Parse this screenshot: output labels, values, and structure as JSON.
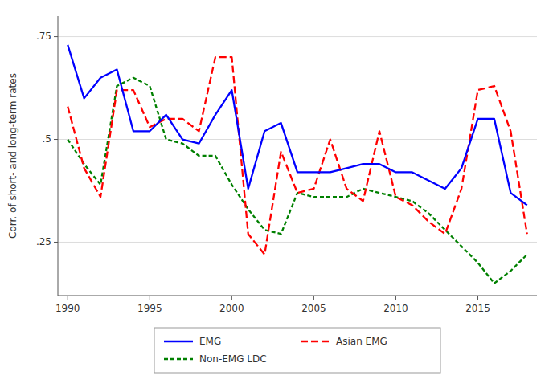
{
  "chart_data": {
    "type": "line",
    "y_label": "Corr. of short- and long-term rates",
    "x": [
      1990,
      1991,
      1992,
      1993,
      1994,
      1995,
      1996,
      1997,
      1998,
      1999,
      2000,
      2001,
      2002,
      2003,
      2004,
      2005,
      2006,
      2007,
      2008,
      2009,
      2010,
      2011,
      2012,
      2013,
      2014,
      2015,
      2016,
      2017,
      2018
    ],
    "series": [
      {
        "name": "EMG",
        "color": "#0000ff",
        "line_style": "solid",
        "values": [
          0.73,
          0.6,
          0.65,
          0.67,
          0.52,
          0.52,
          0.56,
          0.5,
          0.49,
          0.56,
          0.62,
          0.38,
          0.52,
          0.54,
          0.42,
          0.42,
          0.42,
          0.43,
          0.44,
          0.44,
          0.42,
          0.42,
          0.4,
          0.38,
          0.43,
          0.55,
          0.55,
          0.37,
          0.34
        ]
      },
      {
        "name": "Asian EMG",
        "color": "#ff0000",
        "line_style": "dashed",
        "values": [
          0.58,
          0.43,
          0.36,
          0.62,
          0.62,
          0.53,
          0.55,
          0.55,
          0.52,
          0.7,
          0.7,
          0.27,
          0.22,
          0.47,
          0.37,
          0.38,
          0.5,
          0.38,
          0.35,
          0.52,
          0.36,
          0.34,
          0.3,
          0.27,
          0.38,
          0.62,
          0.63,
          0.52,
          0.27
        ]
      },
      {
        "name": "Non-EMG LDC",
        "color": "#008000",
        "line_style": "dashed",
        "values": [
          0.5,
          0.44,
          0.39,
          0.63,
          0.65,
          0.63,
          0.5,
          0.49,
          0.46,
          0.46,
          0.39,
          0.33,
          0.28,
          0.27,
          0.37,
          0.36,
          0.36,
          0.36,
          0.38,
          0.37,
          0.36,
          0.35,
          0.32,
          0.28,
          0.24,
          0.2,
          0.15,
          0.18,
          0.22
        ]
      }
    ],
    "xlim": [
      1989.4,
      2018.6
    ],
    "xticks": [
      1990,
      1995,
      2000,
      2005,
      2010,
      2015
    ],
    "ylim": [
      0.12,
      0.8
    ],
    "yticks": [
      {
        "value": 0.25,
        "label": ".25"
      },
      {
        "value": 0.5,
        "label": ".5"
      },
      {
        "value": 0.75,
        "label": ".75"
      }
    ],
    "grid": true,
    "legend": "bottom"
  }
}
